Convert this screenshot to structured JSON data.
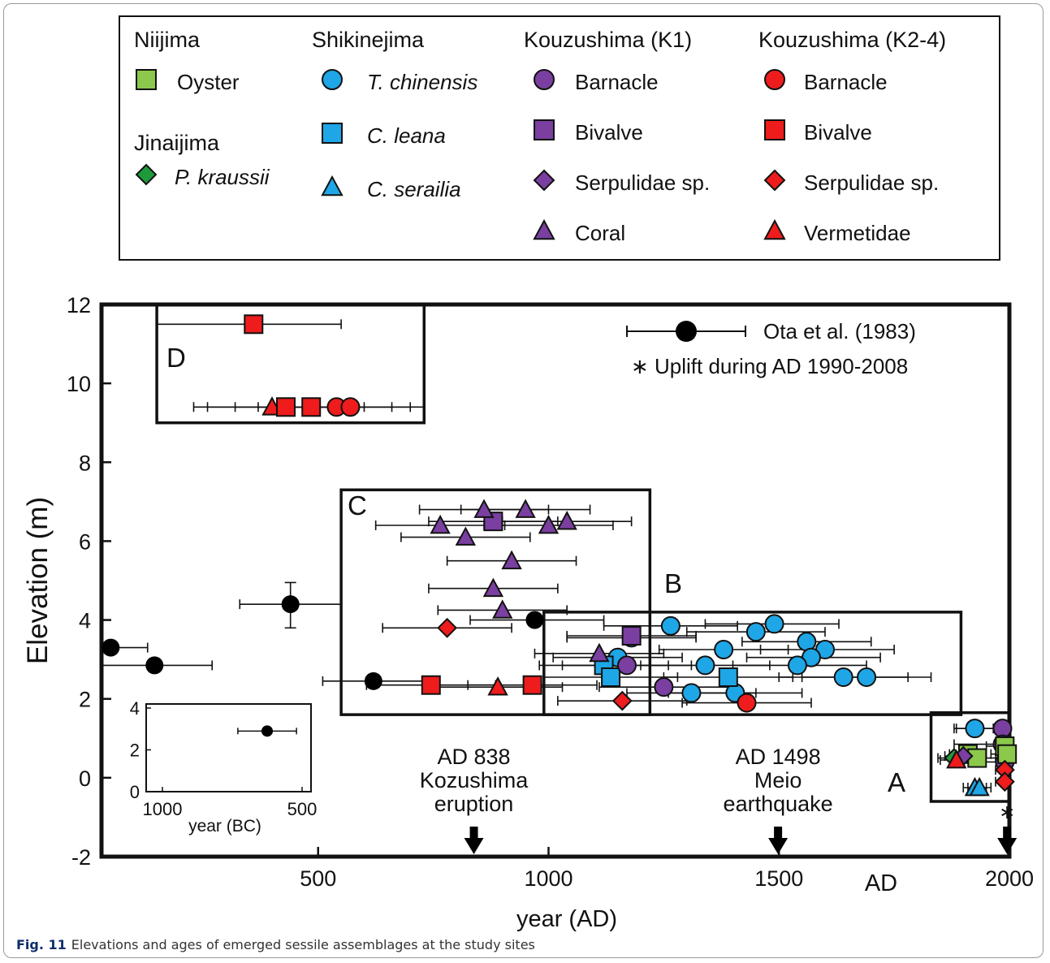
{
  "caption": {
    "label": "Fig. 11",
    "text": "Elevations and ages of emerged sessile assemblages at the study sites"
  },
  "legend": {
    "groups": [
      {
        "title": "Niijima",
        "items": [
          {
            "label": "Oyster",
            "shape": "square",
            "color": "#8cc84b",
            "italic": false
          }
        ]
      },
      {
        "title": "Jinaijima",
        "items": [
          {
            "label": "P. kraussii",
            "shape": "diamond",
            "color": "#1f9a3a",
            "italic": true
          }
        ]
      },
      {
        "title": "Shikinejima",
        "items": [
          {
            "label": "T. chinensis",
            "shape": "circle",
            "color": "#1ea6e6",
            "italic": true
          },
          {
            "label": "C. leana",
            "shape": "square",
            "color": "#1ea6e6",
            "italic": true
          },
          {
            "label": "C. serailia",
            "shape": "triangle",
            "color": "#1ea6e6",
            "italic": true
          }
        ]
      },
      {
        "title": "Kouzushima (K1)",
        "items": [
          {
            "label": "Barnacle",
            "shape": "circle",
            "color": "#7a3fa0",
            "italic": false
          },
          {
            "label": "Bivalve",
            "shape": "square",
            "color": "#7a3fa0",
            "italic": false
          },
          {
            "label": "Serpulidae sp.",
            "shape": "diamond",
            "color": "#7a3fa0",
            "italic": false
          },
          {
            "label": "Coral",
            "shape": "triangle",
            "color": "#7a3fa0",
            "italic": false
          }
        ]
      },
      {
        "title": "Kouzushima (K2-4)",
        "items": [
          {
            "label": "Barnacle",
            "shape": "circle",
            "color": "#ee1c1c",
            "italic": false
          },
          {
            "label": "Bivalve",
            "shape": "square",
            "color": "#ee1c1c",
            "italic": false
          },
          {
            "label": "Serpulidae sp.",
            "shape": "diamond",
            "color": "#ee1c1c",
            "italic": false
          },
          {
            "label": "Vermetidae",
            "shape": "triangle",
            "color": "#ee1c1c",
            "italic": false
          }
        ]
      }
    ]
  },
  "chart_data": {
    "type": "scatter",
    "xlabel": "year (AD)",
    "ylabel": "Elevation (m)",
    "x_unit_label": "AD",
    "xlim": [
      30,
      2000
    ],
    "ylim": [
      -2,
      12
    ],
    "xticks": [
      500,
      1000,
      1500,
      2000
    ],
    "yticks": [
      -2,
      0,
      2,
      4,
      6,
      8,
      10,
      12
    ],
    "grid": false,
    "ota_legend": "Ota et al. (1983)",
    "uplift_note": "∗ Uplift during AD 1990-2008",
    "ota_points": [
      {
        "x": 50,
        "y": 3.3,
        "xerr": [
          30,
          130
        ]
      },
      {
        "x": 145,
        "y": 2.85,
        "xerr": [
          30,
          270
        ]
      },
      {
        "x": 440,
        "y": 4.4,
        "xerr": [
          330,
          550
        ],
        "yerr": [
          3.8,
          4.95
        ]
      },
      {
        "x": 620,
        "y": 2.45,
        "xerr": [
          510,
          730
        ]
      },
      {
        "x": 970,
        "y": 4.0,
        "xerr": [
          830,
          1120
        ]
      }
    ],
    "points": [
      {
        "x": 1180,
        "y": 3.55,
        "shape": "circle",
        "color": "#1ea6e6",
        "xerr": [
          1040,
          1320
        ]
      },
      {
        "x": 1265,
        "y": 3.85,
        "shape": "circle",
        "color": "#1ea6e6",
        "xerr": [
          1120,
          1410
        ]
      },
      {
        "x": 1490,
        "y": 3.9,
        "shape": "circle",
        "color": "#1ea6e6",
        "xerr": [
          1340,
          1630
        ]
      },
      {
        "x": 1450,
        "y": 3.7,
        "shape": "circle",
        "color": "#1ea6e6",
        "xerr": [
          1300,
          1600
        ]
      },
      {
        "x": 1560,
        "y": 3.45,
        "shape": "circle",
        "color": "#1ea6e6",
        "xerr": [
          1420,
          1700
        ]
      },
      {
        "x": 1600,
        "y": 3.25,
        "shape": "circle",
        "color": "#1ea6e6",
        "xerr": [
          1460,
          1750
        ]
      },
      {
        "x": 1380,
        "y": 3.25,
        "shape": "circle",
        "color": "#1ea6e6",
        "xerr": [
          1240,
          1520
        ]
      },
      {
        "x": 1570,
        "y": 3.05,
        "shape": "circle",
        "color": "#1ea6e6",
        "xerr": [
          1430,
          1720
        ]
      },
      {
        "x": 1150,
        "y": 3.05,
        "shape": "circle",
        "color": "#1ea6e6",
        "xerr": [
          1010,
          1290
        ]
      },
      {
        "x": 1540,
        "y": 2.85,
        "shape": "circle",
        "color": "#1ea6e6",
        "xerr": [
          1400,
          1690
        ]
      },
      {
        "x": 1340,
        "y": 2.85,
        "shape": "circle",
        "color": "#1ea6e6",
        "xerr": [
          1200,
          1480
        ]
      },
      {
        "x": 1640,
        "y": 2.55,
        "shape": "circle",
        "color": "#1ea6e6",
        "xerr": [
          1500,
          1780
        ]
      },
      {
        "x": 1690,
        "y": 2.55,
        "shape": "circle",
        "color": "#1ea6e6",
        "xerr": [
          1550,
          1830
        ]
      },
      {
        "x": 1310,
        "y": 2.15,
        "shape": "circle",
        "color": "#1ea6e6",
        "xerr": [
          1170,
          1450
        ]
      },
      {
        "x": 1405,
        "y": 2.15,
        "shape": "circle",
        "color": "#1ea6e6",
        "xerr": [
          1260,
          1550
        ]
      },
      {
        "x": 1120,
        "y": 2.85,
        "shape": "square",
        "color": "#1ea6e6",
        "xerr": [
          980,
          1260
        ]
      },
      {
        "x": 1135,
        "y": 2.55,
        "shape": "square",
        "color": "#1ea6e6",
        "xerr": [
          990,
          1280
        ]
      },
      {
        "x": 1390,
        "y": 2.55,
        "shape": "square",
        "color": "#1ea6e6",
        "xerr": [
          1250,
          1530
        ]
      },
      {
        "x": 1180,
        "y": 3.6,
        "shape": "square",
        "color": "#7a3fa0",
        "xerr": [
          1040,
          1320
        ]
      },
      {
        "x": 1170,
        "y": 2.85,
        "shape": "circle",
        "color": "#7a3fa0",
        "xerr": [
          1030,
          1310
        ]
      },
      {
        "x": 1250,
        "y": 2.3,
        "shape": "circle",
        "color": "#7a3fa0",
        "xerr": [
          1110,
          1390
        ]
      },
      {
        "x": 1110,
        "y": 3.15,
        "shape": "triangle",
        "color": "#7a3fa0",
        "xerr": [
          970,
          1250
        ]
      },
      {
        "x": 1430,
        "y": 1.9,
        "shape": "circle",
        "color": "#ee1c1c",
        "xerr": [
          1290,
          1570
        ]
      },
      {
        "x": 1160,
        "y": 1.95,
        "shape": "diamond",
        "color": "#ee1c1c",
        "xerr": [
          1020,
          1300
        ]
      },
      {
        "x": 880,
        "y": 6.5,
        "shape": "square",
        "color": "#7a3fa0",
        "xerr": [
          740,
          1020
        ]
      },
      {
        "x": 860,
        "y": 6.8,
        "shape": "triangle",
        "color": "#7a3fa0",
        "xerr": [
          720,
          1000
        ]
      },
      {
        "x": 950,
        "y": 6.8,
        "shape": "triangle",
        "color": "#7a3fa0",
        "xerr": [
          810,
          1090
        ]
      },
      {
        "x": 765,
        "y": 6.4,
        "shape": "triangle",
        "color": "#7a3fa0",
        "xerr": [
          625,
          905
        ]
      },
      {
        "x": 1000,
        "y": 6.4,
        "shape": "triangle",
        "color": "#7a3fa0",
        "xerr": [
          860,
          1140
        ]
      },
      {
        "x": 1040,
        "y": 6.5,
        "shape": "triangle",
        "color": "#7a3fa0",
        "xerr": [
          900,
          1180
        ]
      },
      {
        "x": 820,
        "y": 6.1,
        "shape": "triangle",
        "color": "#7a3fa0",
        "xerr": [
          680,
          960
        ]
      },
      {
        "x": 920,
        "y": 5.5,
        "shape": "triangle",
        "color": "#7a3fa0",
        "xerr": [
          780,
          1060
        ]
      },
      {
        "x": 880,
        "y": 4.8,
        "shape": "triangle",
        "color": "#7a3fa0",
        "xerr": [
          740,
          1020
        ]
      },
      {
        "x": 900,
        "y": 4.25,
        "shape": "triangle",
        "color": "#7a3fa0",
        "xerr": [
          760,
          1040
        ]
      },
      {
        "x": 780,
        "y": 3.8,
        "shape": "diamond",
        "color": "#ee1c1c",
        "xerr": [
          640,
          920
        ]
      },
      {
        "x": 745,
        "y": 2.35,
        "shape": "square",
        "color": "#ee1c1c",
        "xerr": [
          605,
          885
        ]
      },
      {
        "x": 965,
        "y": 2.35,
        "shape": "square",
        "color": "#ee1c1c",
        "xerr": [
          825,
          1105
        ]
      },
      {
        "x": 890,
        "y": 2.3,
        "shape": "triangle",
        "color": "#ee1c1c",
        "xerr": [
          750,
          1030
        ]
      },
      {
        "x": 1985,
        "y": 1.25,
        "shape": "circle",
        "color": "#7a3fa0",
        "xerr": [
          1880,
          2000
        ]
      },
      {
        "x": 1985,
        "y": 0.85,
        "shape": "circle",
        "color": "#7a3fa0",
        "xerr": [
          1880,
          2000
        ]
      },
      {
        "x": 1990,
        "y": 0.4,
        "shape": "circle",
        "color": "#7a3fa0",
        "xerr": [
          1900,
          2000
        ]
      },
      {
        "x": 1925,
        "y": 1.25,
        "shape": "circle",
        "color": "#1ea6e6",
        "xerr": [
          1885,
          1965
        ]
      },
      {
        "x": 1910,
        "y": 0.6,
        "shape": "square",
        "color": "#8cc84b",
        "xerr": [
          1870,
          1950
        ]
      },
      {
        "x": 1930,
        "y": 0.5,
        "shape": "square",
        "color": "#8cc84b",
        "xerr": [
          1890,
          1970
        ]
      },
      {
        "x": 1990,
        "y": 0.8,
        "shape": "square",
        "color": "#8cc84b",
        "xerr": [
          1950,
          2000
        ]
      },
      {
        "x": 1995,
        "y": 0.6,
        "shape": "square",
        "color": "#8cc84b",
        "xerr": [
          1960,
          2000
        ]
      },
      {
        "x": 1880,
        "y": 0.5,
        "shape": "diamond",
        "color": "#1f9a3a",
        "xerr": [
          1845,
          1915
        ]
      },
      {
        "x": 1900,
        "y": 0.55,
        "shape": "diamond",
        "color": "#7a3fa0",
        "xerr": [
          1860,
          1940
        ]
      },
      {
        "x": 1925,
        "y": -0.25,
        "shape": "triangle",
        "color": "#1ea6e6",
        "xerr": [
          1900,
          1950
        ]
      },
      {
        "x": 1935,
        "y": -0.25,
        "shape": "triangle",
        "color": "#1ea6e6",
        "xerr": [
          1910,
          1960
        ]
      },
      {
        "x": 1990,
        "y": 0.2,
        "shape": "diamond",
        "color": "#ee1c1c",
        "xerr": [
          1970,
          2000
        ]
      },
      {
        "x": 1990,
        "y": -0.1,
        "shape": "diamond",
        "color": "#ee1c1c",
        "xerr": [
          1970,
          2000
        ]
      },
      {
        "x": 1885,
        "y": 0.45,
        "shape": "triangle",
        "color": "#ee1c1c",
        "xerr": [
          1850,
          1920
        ]
      }
    ],
    "group_D_points": [
      {
        "x": 360,
        "y": 11.5,
        "shape": "square",
        "color": "#ee1c1c",
        "xerr": [
          150,
          550
        ]
      },
      {
        "x": 400,
        "y": 9.4,
        "shape": "triangle",
        "color": "#ee1c1c",
        "xerr": [
          230,
          570
        ]
      },
      {
        "x": 430,
        "y": 9.4,
        "shape": "square",
        "color": "#ee1c1c",
        "xerr": [
          260,
          600
        ]
      },
      {
        "x": 485,
        "y": 9.4,
        "shape": "square",
        "color": "#ee1c1c",
        "xerr": [
          320,
          660
        ]
      },
      {
        "x": 540,
        "y": 9.4,
        "shape": "circle",
        "color": "#ee1c1c",
        "xerr": [
          370,
          700
        ]
      },
      {
        "x": 570,
        "y": 9.4,
        "shape": "circle",
        "color": "#ee1c1c",
        "xerr": [
          400,
          730
        ]
      }
    ],
    "boxes": [
      {
        "label": "A",
        "x": [
          1830,
          2000
        ],
        "y": [
          -0.6,
          1.65
        ]
      },
      {
        "label": "B",
        "x": [
          990,
          1895
        ],
        "y": [
          1.6,
          4.2
        ]
      },
      {
        "label": "C",
        "x": [
          550,
          1220
        ],
        "y": [
          1.6,
          7.3
        ]
      },
      {
        "label": "D",
        "x": [
          150,
          730
        ],
        "y": [
          9.0,
          12.0
        ]
      }
    ],
    "events": [
      {
        "lines": [
          "AD 838",
          "Kozushima",
          "eruption"
        ],
        "x": 838
      },
      {
        "lines": [
          "AD 1498",
          "Meio",
          "earthquake"
        ],
        "x": 1498
      },
      {
        "lines": [
          "",
          "∗"
        ],
        "x": 1995
      }
    ],
    "inset": {
      "xlabel": "year (BC)",
      "xticks": [
        "1000",
        "500"
      ],
      "yticks": [
        "0",
        "2",
        "4"
      ],
      "ylim": [
        0,
        4
      ],
      "point": {
        "x_bc": 625,
        "y": 2.9,
        "xerr_bc": [
          730,
          520
        ]
      }
    }
  }
}
